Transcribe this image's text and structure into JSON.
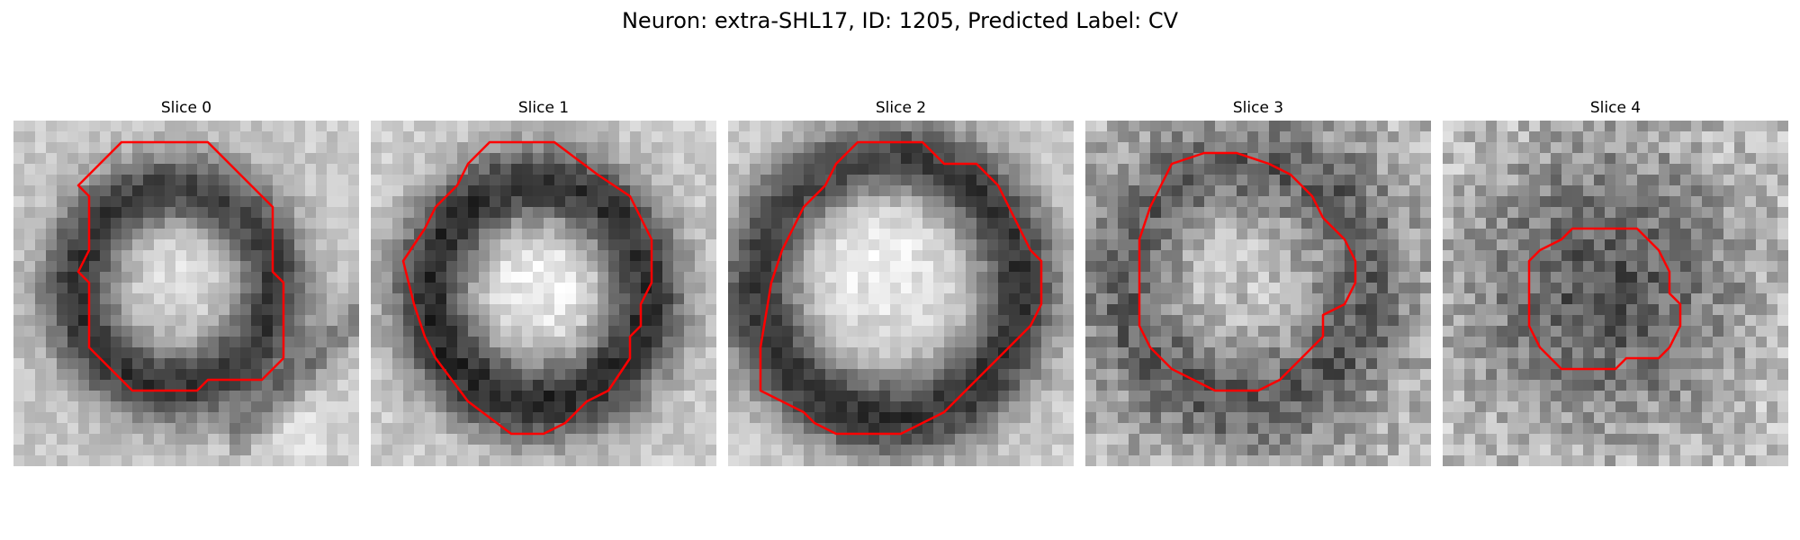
{
  "figure": {
    "suptitle": "Neuron: extra-SHL17, ID: 1205, Predicted Label: CV"
  },
  "colors": {
    "contour": "#ff0000",
    "background": "#ffffff"
  },
  "panels": [
    {
      "title": "Slice 0"
    },
    {
      "title": "Slice 1"
    },
    {
      "title": "Slice 2"
    },
    {
      "title": "Slice 3"
    },
    {
      "title": "Slice 4"
    }
  ]
}
